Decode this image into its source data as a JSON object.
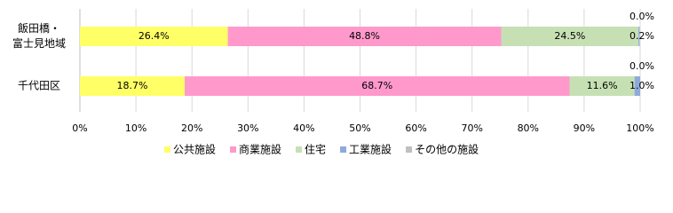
{
  "chart_data": {
    "type": "stacked-barh",
    "categories": [
      [
        "飯田橋・",
        "富士見地域"
      ],
      [
        "千代田区"
      ]
    ],
    "series": [
      {
        "name": "公共施設",
        "color": "#ffff66",
        "values": [
          26.4,
          18.7
        ],
        "value_labels": [
          "26.4%",
          "18.7%"
        ]
      },
      {
        "name": "商業施設",
        "color": "#ff99cc",
        "values": [
          48.8,
          68.7
        ],
        "value_labels": [
          "48.8%",
          "68.7%"
        ]
      },
      {
        "name": "住宅",
        "color": "#c6e0b4",
        "values": [
          24.5,
          11.6
        ],
        "value_labels": [
          "24.5%",
          "11.6%"
        ]
      },
      {
        "name": "工業施設",
        "color": "#8eaadb",
        "values": [
          0.2,
          1.0
        ],
        "value_labels": [
          "0.2%",
          "1.0%"
        ]
      },
      {
        "name": "その他の施設",
        "color": "#bfbfbf",
        "values": [
          0.0,
          0.0
        ],
        "value_labels": [
          "0.0%",
          "0.0%"
        ]
      }
    ],
    "xlim": [
      0,
      100
    ],
    "xticks": [
      {
        "value": 0,
        "label": "0%"
      },
      {
        "value": 10,
        "label": "10%"
      },
      {
        "value": 20,
        "label": "20%"
      },
      {
        "value": 30,
        "label": "30%"
      },
      {
        "value": 40,
        "label": "40%"
      },
      {
        "value": 50,
        "label": "50%"
      },
      {
        "value": 60,
        "label": "60%"
      },
      {
        "value": 70,
        "label": "70%"
      },
      {
        "value": 80,
        "label": "80%"
      },
      {
        "value": 90,
        "label": "90%"
      },
      {
        "value": 100,
        "label": "100%"
      }
    ],
    "grid": true,
    "legend": "bottom"
  }
}
